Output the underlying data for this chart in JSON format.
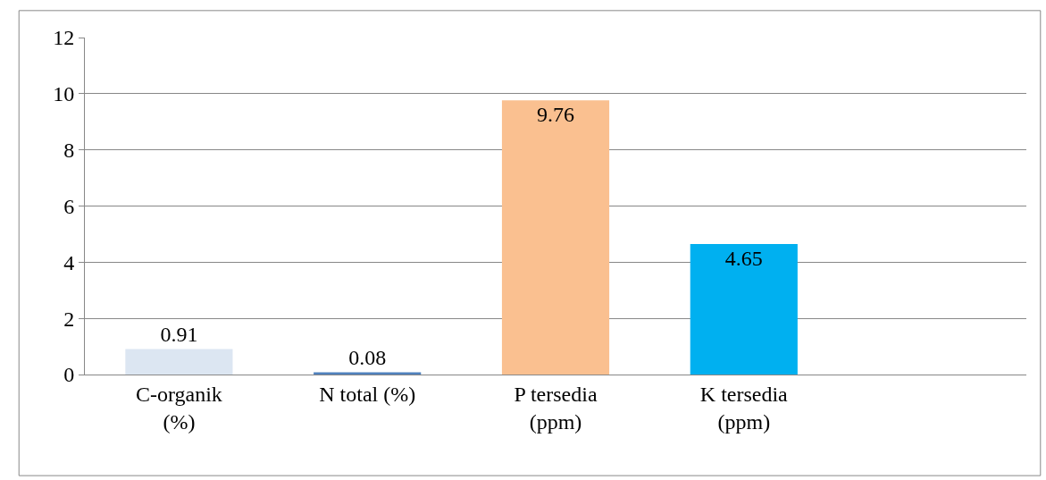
{
  "chart_data": {
    "type": "bar",
    "categories": [
      "C-organik\n(%)",
      "N total (%)",
      "P tersedia\n(ppm)",
      "K tersedia\n(ppm)",
      null
    ],
    "values": [
      0.91,
      0.08,
      9.76,
      4.65,
      null
    ],
    "colors": [
      "#dce6f2",
      "#4f81bd",
      "#fac090",
      "#00b0f0",
      "#000000"
    ],
    "ylim": [
      0,
      12
    ],
    "yticks": [
      0,
      2,
      4,
      6,
      8,
      10,
      12
    ],
    "grid": "y",
    "data_labels": true,
    "legend": false
  }
}
